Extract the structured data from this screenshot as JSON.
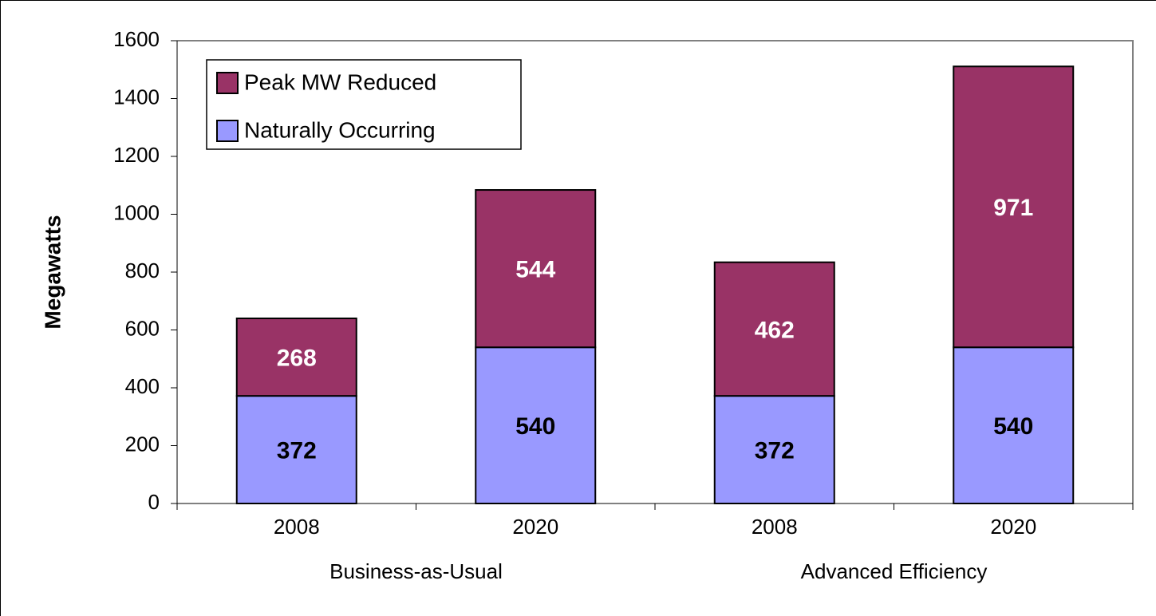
{
  "chart_data": {
    "type": "stacked_bar",
    "ylabel": "Megawatts",
    "categories": [
      "2008",
      "2020",
      "2008",
      "2020"
    ],
    "groups": [
      "Business-as-Usual",
      "Advanced Efficiency"
    ],
    "series": [
      {
        "name": "Naturally Occurring",
        "color": "#9999ff",
        "label_color": "#000000",
        "values": [
          372,
          540,
          372,
          540
        ]
      },
      {
        "name": "Peak MW Reduced",
        "color": "#993366",
        "label_color": "#ffffff",
        "values": [
          268,
          544,
          462,
          971
        ]
      }
    ],
    "ylim": [
      0,
      1600
    ],
    "yticks": [
      0,
      200,
      400,
      600,
      800,
      1000,
      1200,
      1400,
      1600
    ],
    "grid": false,
    "legend": "upper left"
  }
}
